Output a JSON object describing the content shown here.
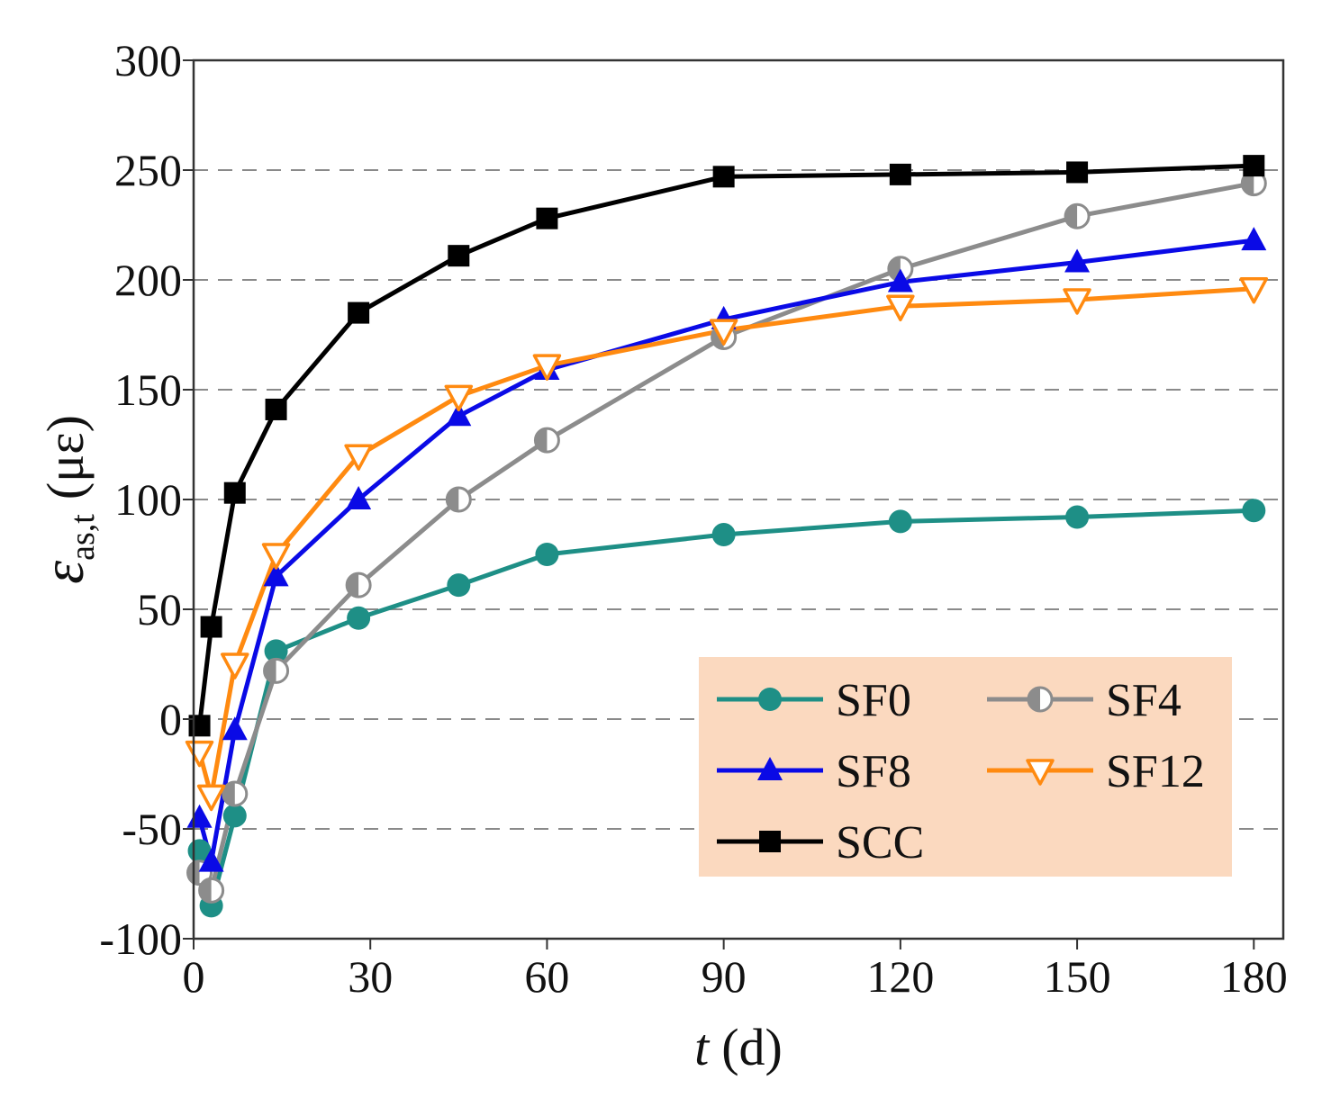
{
  "chart_data": {
    "type": "line",
    "title": "",
    "xlabel_italic": "t",
    "xlabel_unit": "(d)",
    "ylabel_symbol": "ε",
    "ylabel_subscript": "as,t",
    "ylabel_unit": "(με)",
    "xlim": [
      0,
      185
    ],
    "ylim": [
      -100,
      300
    ],
    "xticks": [
      0,
      30,
      60,
      90,
      120,
      150,
      180
    ],
    "yticks": [
      -100,
      -50,
      0,
      50,
      100,
      150,
      200,
      250,
      300
    ],
    "grid": "dashed horizontal",
    "legend_position": "bottom-right",
    "legend_background": "#fbd9bf",
    "x": [
      1,
      3,
      7,
      14,
      28,
      45,
      60,
      90,
      120,
      150,
      180
    ],
    "series": [
      {
        "name": "SF0",
        "color": "#1e8f86",
        "marker": "circle",
        "values": [
          -60,
          -85,
          -44,
          31,
          46,
          61,
          75,
          84,
          90,
          92,
          95
        ]
      },
      {
        "name": "SF4",
        "color": "#8c8c8c",
        "marker": "half-circle",
        "values": [
          -70,
          -78,
          -34,
          22,
          61,
          100,
          127,
          174,
          205,
          229,
          244
        ]
      },
      {
        "name": "SF8",
        "color": "#0a0ae6",
        "marker": "triangle-up",
        "values": [
          -45,
          -65,
          -5,
          65,
          100,
          138,
          159,
          182,
          199,
          208,
          218
        ]
      },
      {
        "name": "SF12",
        "color": "#ff8a10",
        "marker": "triangle-down",
        "values": [
          -15,
          -35,
          25,
          75,
          120,
          147,
          161,
          177,
          188,
          191,
          196
        ]
      },
      {
        "name": "SCC",
        "color": "#000000",
        "marker": "square",
        "values": [
          -3,
          42,
          103,
          141,
          185,
          211,
          228,
          247,
          248,
          249,
          252
        ]
      }
    ]
  }
}
